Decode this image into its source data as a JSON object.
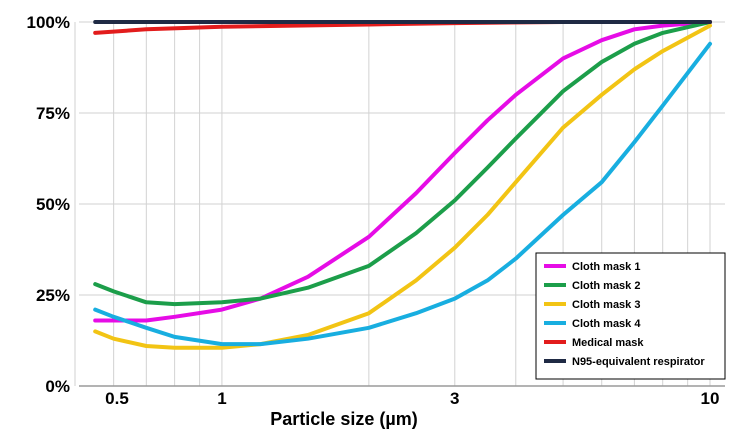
{
  "chart_data": {
    "type": "line",
    "xlabel": "Particle size (µm)",
    "x_scale": "log",
    "xlim": [
      0.5,
      10
    ],
    "ylim": [
      0,
      100
    ],
    "grid": true,
    "legend_position": "bottom-right",
    "x_ticks": [
      {
        "value": 0.5,
        "label": "0.5"
      },
      {
        "value": 1,
        "label": "1"
      },
      {
        "value": 3,
        "label": "3"
      },
      {
        "value": 10,
        "label": "10"
      }
    ],
    "y_ticks": [
      {
        "value": 0,
        "label": "0%"
      },
      {
        "value": 25,
        "label": "25%"
      },
      {
        "value": 50,
        "label": "50%"
      },
      {
        "value": 75,
        "label": "75%"
      },
      {
        "value": 100,
        "label": "100%"
      }
    ],
    "series": [
      {
        "name": "Cloth mask 1",
        "color": "#e60ce6",
        "x": [
          0.55,
          0.6,
          0.7,
          0.8,
          1.0,
          1.2,
          1.5,
          2.0,
          2.5,
          3.0,
          3.5,
          4.0,
          5.0,
          6.0,
          7.0,
          8.0,
          10.0
        ],
        "y": [
          18,
          18,
          18,
          19,
          21,
          24,
          30,
          41,
          53,
          64,
          73,
          80,
          90,
          95,
          98,
          99,
          100
        ]
      },
      {
        "name": "Cloth mask 2",
        "color": "#1c9e4a",
        "x": [
          0.55,
          0.6,
          0.7,
          0.8,
          1.0,
          1.2,
          1.5,
          2.0,
          2.5,
          3.0,
          3.5,
          4.0,
          5.0,
          6.0,
          7.0,
          8.0,
          10.0
        ],
        "y": [
          28,
          26,
          23,
          22.5,
          23,
          24,
          27,
          33,
          42,
          51,
          60,
          68,
          81,
          89,
          94,
          97,
          100
        ]
      },
      {
        "name": "Cloth mask 3",
        "color": "#f2c414",
        "x": [
          0.55,
          0.6,
          0.7,
          0.8,
          1.0,
          1.2,
          1.5,
          2.0,
          2.5,
          3.0,
          3.5,
          4.0,
          5.0,
          6.0,
          7.0,
          8.0,
          10.0
        ],
        "y": [
          15,
          13,
          11,
          10.5,
          10.5,
          11.5,
          14,
          20,
          29,
          38,
          47,
          56,
          71,
          80,
          87,
          92,
          99
        ]
      },
      {
        "name": "Cloth mask 4",
        "color": "#18aee0",
        "x": [
          0.55,
          0.6,
          0.7,
          0.8,
          1.0,
          1.2,
          1.5,
          2.0,
          2.5,
          3.0,
          3.5,
          4.0,
          5.0,
          6.0,
          7.0,
          8.0,
          10.0
        ],
        "y": [
          21,
          19,
          16,
          13.5,
          11.5,
          11.5,
          13,
          16,
          20,
          24,
          29,
          35,
          47,
          56,
          67,
          77,
          94
        ]
      },
      {
        "name": "Medical mask",
        "color": "#e21c1c",
        "x": [
          0.55,
          0.7,
          1.0,
          2.0,
          3.0,
          5.0,
          10.0
        ],
        "y": [
          97,
          98,
          98.7,
          99.3,
          99.7,
          100,
          100
        ]
      },
      {
        "name": "N95-equivalent respirator",
        "color": "#1f2a44",
        "x": [
          0.55,
          1.0,
          3.0,
          10.0
        ],
        "y": [
          100,
          100,
          100,
          100
        ]
      }
    ]
  }
}
